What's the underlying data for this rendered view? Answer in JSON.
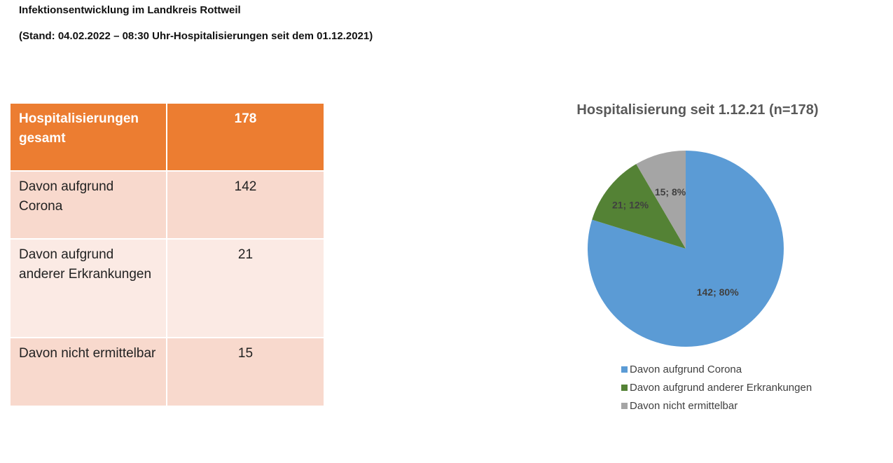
{
  "header": {
    "title": "Infektionsentwicklung im Landkreis Rottweil",
    "subtitle": "(Stand: 04.02.2022 – 08:30 Uhr-Hospitalisierungen seit dem 01.12.2021)"
  },
  "table": {
    "rows": [
      {
        "label": "Hospitalisierungen gesamt",
        "value": "178"
      },
      {
        "label": "Davon aufgrund Corona",
        "value": "142"
      },
      {
        "label": "Davon aufgrund anderer Erkrankungen",
        "value": "21"
      },
      {
        "label": "Davon nicht ermittelbar",
        "value": "15"
      }
    ],
    "colors": {
      "header": "#ec7d31",
      "row_dark": "#f8d9cd",
      "row_light": "#fbeae4"
    }
  },
  "chart_data": {
    "type": "pie",
    "title": "Hospitalisierung seit 1.12.21 (n=178)",
    "categories": [
      "Davon aufgrund Corona",
      "Davon aufgrund anderer Erkrankungen",
      "Davon nicht ermittelbar"
    ],
    "values": [
      142,
      21,
      15
    ],
    "data_labels": [
      "142; 80%",
      "21; 12%",
      "15; 8%"
    ],
    "colors": [
      "#5b9bd5",
      "#548235",
      "#a5a5a5"
    ],
    "legend": "bottom"
  }
}
